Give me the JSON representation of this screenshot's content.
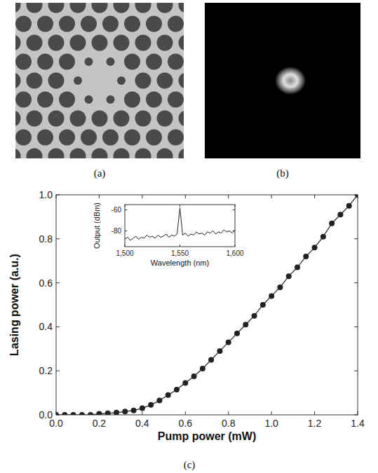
{
  "panels": {
    "a": {
      "label": "(a)"
    },
    "b": {
      "label": "(b)"
    },
    "c": {
      "label": "(c)"
    }
  },
  "chart_data": [
    {
      "type": "line",
      "marker": "circle",
      "color": "#222222",
      "x_label": "Pump power (mW)",
      "y_label": "Lasing power (a.u.)",
      "x": [
        0.0,
        0.04,
        0.08,
        0.12,
        0.16,
        0.2,
        0.24,
        0.28,
        0.32,
        0.36,
        0.4,
        0.44,
        0.48,
        0.52,
        0.56,
        0.6,
        0.64,
        0.68,
        0.72,
        0.76,
        0.8,
        0.84,
        0.88,
        0.92,
        0.96,
        1.0,
        1.04,
        1.08,
        1.12,
        1.16,
        1.2,
        1.24,
        1.28,
        1.32,
        1.36,
        1.4
      ],
      "values": [
        0.0,
        0.0,
        0.0,
        0.0,
        0.0,
        0.005,
        0.007,
        0.01,
        0.015,
        0.02,
        0.03,
        0.045,
        0.065,
        0.09,
        0.115,
        0.145,
        0.175,
        0.21,
        0.25,
        0.29,
        0.33,
        0.37,
        0.41,
        0.45,
        0.5,
        0.54,
        0.58,
        0.63,
        0.67,
        0.72,
        0.76,
        0.81,
        0.87,
        0.91,
        0.95,
        1.0
      ],
      "xlim": [
        0,
        1.4
      ],
      "ylim": [
        0,
        1.0
      ],
      "xticks": [
        {
          "value": 0,
          "label": "0.0"
        },
        0.2,
        0.4,
        0.6,
        0.8,
        {
          "value": 1,
          "label": "1.0"
        },
        1.2,
        1.4
      ],
      "yticks": [
        {
          "value": 0,
          "label": "0.0"
        },
        0.2,
        0.4,
        0.6,
        0.8,
        {
          "value": 1,
          "label": "1.0"
        }
      ],
      "grid": false
    },
    {
      "type": "line",
      "color": "#222222",
      "x_label": "Wavelength (nm)",
      "y_label": "Output (dBm)",
      "x": [
        1500,
        1502.5,
        1505,
        1507.5,
        1510,
        1512.5,
        1515,
        1517.5,
        1520,
        1522.5,
        1525,
        1527.5,
        1530,
        1532.5,
        1535,
        1537.5,
        1540,
        1542.5,
        1545,
        1547.5,
        1550,
        1552.5,
        1555,
        1557.5,
        1560,
        1562.5,
        1565,
        1567.5,
        1570,
        1572.5,
        1575,
        1577.5,
        1580,
        1582.5,
        1585,
        1587.5,
        1590,
        1592.5,
        1595,
        1597.5,
        1600
      ],
      "values": [
        -88,
        -86,
        -89,
        -87,
        -85,
        -88,
        -86,
        -87,
        -84,
        -86,
        -85,
        -87,
        -84,
        -86,
        -85,
        -83,
        -86,
        -84,
        -85,
        -83,
        -58,
        -84,
        -82,
        -85,
        -83,
        -84,
        -81,
        -83,
        -82,
        -84,
        -81,
        -82,
        -80,
        -83,
        -81,
        -82,
        -79,
        -81,
        -80,
        -82,
        -79
      ],
      "xlim": [
        1500,
        1600
      ],
      "ylim": [
        -95,
        -55
      ],
      "xticks": [
        {
          "value": 1500,
          "label": "1,500"
        },
        {
          "value": 1550,
          "label": "1,550"
        },
        {
          "value": 1600,
          "label": "1,600"
        }
      ],
      "yticks": [
        -60,
        -80
      ],
      "grid": false
    }
  ]
}
